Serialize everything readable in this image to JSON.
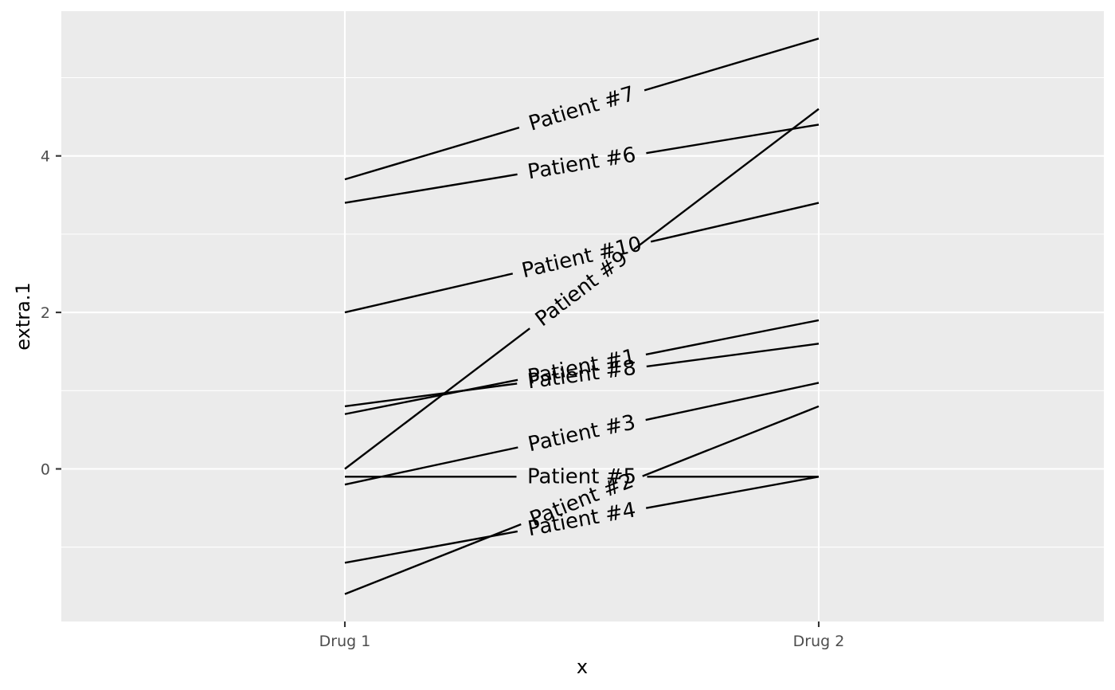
{
  "chart_data": {
    "type": "line",
    "xlabel": "x",
    "ylabel": "extra.1",
    "categories": [
      "Drug 1",
      "Drug 2"
    ],
    "ylim": [
      -1.95,
      5.85
    ],
    "y_ticks": [
      0,
      2,
      4
    ],
    "grid": true,
    "legend": "none",
    "series": [
      {
        "name": "Patient #1",
        "values": [
          0.7,
          1.9
        ]
      },
      {
        "name": "Patient #2",
        "values": [
          -1.6,
          0.8
        ]
      },
      {
        "name": "Patient #3",
        "values": [
          -0.2,
          1.1
        ]
      },
      {
        "name": "Patient #4",
        "values": [
          -1.2,
          -0.1
        ]
      },
      {
        "name": "Patient #5",
        "values": [
          -0.1,
          -0.1
        ]
      },
      {
        "name": "Patient #6",
        "values": [
          3.4,
          4.4
        ]
      },
      {
        "name": "Patient #7",
        "values": [
          3.7,
          5.5
        ]
      },
      {
        "name": "Patient #8",
        "values": [
          0.8,
          1.6
        ]
      },
      {
        "name": "Patient #9",
        "values": [
          0.0,
          4.6
        ]
      },
      {
        "name": "Patient #10",
        "values": [
          2.0,
          3.4
        ]
      }
    ]
  },
  "colors": {
    "panel_background": "#ebebeb",
    "gridline": "#ffffff",
    "line": "#000000",
    "tick_text": "#4d4d4d"
  }
}
